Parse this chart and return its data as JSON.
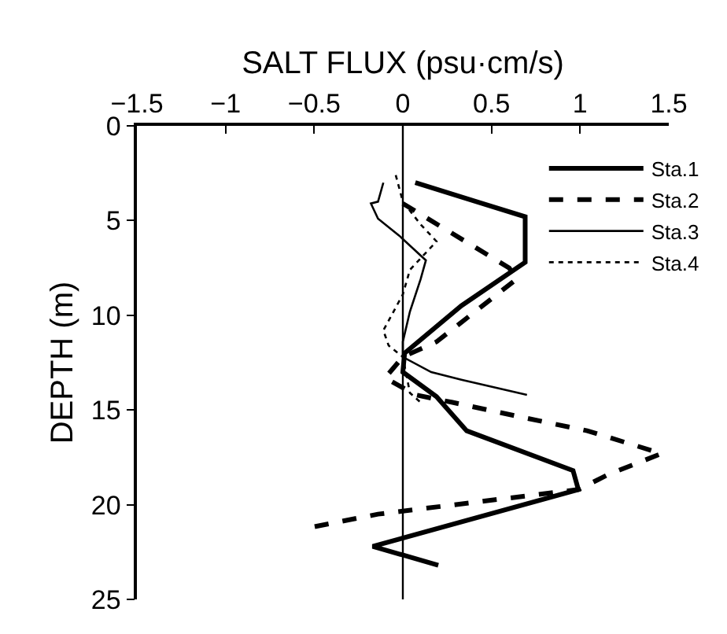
{
  "chart_data": {
    "type": "line",
    "xlabel": "SALT FLUX (psu·cm/s)",
    "ylabel": "DEPTH (m)",
    "xlim": [
      -1.5,
      1.5
    ],
    "xticks": [
      -1.5,
      -1,
      -0.5,
      0,
      0.5,
      1,
      1.5
    ],
    "ylim": [
      25,
      0
    ],
    "yticks": [
      0,
      5,
      10,
      15,
      20,
      25
    ],
    "legend": "top right",
    "marker": "none",
    "ref_lines": [
      {
        "axis": "x",
        "value": 0,
        "color": "#000000",
        "line_style": "solid"
      }
    ],
    "series": [
      {
        "name": "Sta.1",
        "color": "#000000",
        "line_style": "solid",
        "x": [
          0.07,
          0.69,
          0.69,
          0.33,
          0.01,
          0,
          0.19,
          0.36,
          0.96,
          0.99,
          -0.17,
          0.2
        ],
        "values": [
          3.0,
          4.8,
          7.2,
          9.5,
          12.0,
          13.0,
          14.3,
          16.1,
          18.2,
          19.2,
          22.2,
          23.2
        ]
      },
      {
        "name": "Sta.2",
        "color": "#000000",
        "line_style": "dashed",
        "x": [
          0,
          0.6,
          0.64,
          0.19,
          0,
          -0.1,
          0.07,
          0.28,
          0.63,
          1.04,
          1.46,
          1.16,
          0.99,
          -0.14,
          -0.52
        ],
        "values": [
          4.1,
          7.5,
          8.1,
          11.4,
          12.2,
          13.3,
          14.2,
          14.6,
          15.3,
          16.1,
          17.3,
          18.4,
          19.2,
          20.5,
          21.2
        ]
      },
      {
        "name": "Sta.3",
        "color": "#000000",
        "line_style": "solid",
        "x": [
          -0.11,
          -0.14,
          -0.18,
          -0.14,
          -0.02,
          0.13,
          0.1,
          0.04,
          0,
          0,
          0.16,
          0.33,
          0.7
        ],
        "values": [
          3.0,
          4.0,
          4.1,
          4.9,
          5.8,
          7.1,
          8.1,
          9.8,
          11.4,
          12.2,
          13.0,
          13.4,
          14.2
        ]
      },
      {
        "name": "Sta.4",
        "color": "#000000",
        "line_style": "dotted",
        "x": [
          -0.04,
          0,
          0.1,
          0.19,
          0.04,
          0,
          -0.11,
          -0.08,
          0,
          0.04,
          0.1
        ],
        "values": [
          2.6,
          4.0,
          5.2,
          6.1,
          7.6,
          8.9,
          10.8,
          11.6,
          12.2,
          14.1,
          14.6
        ]
      }
    ]
  }
}
